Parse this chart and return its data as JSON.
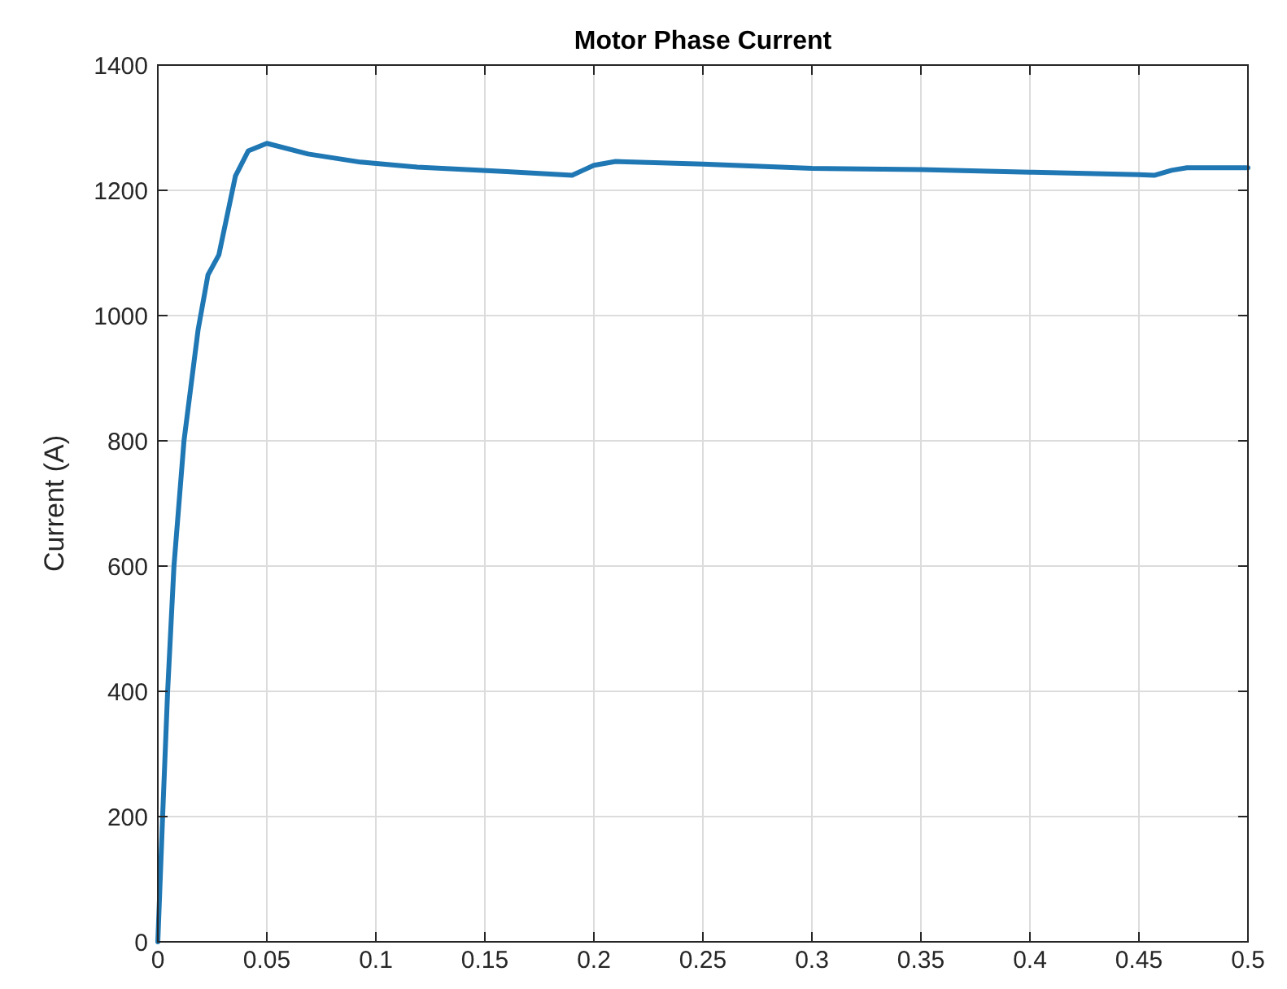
{
  "chart_data": {
    "type": "line",
    "title": "Motor Phase Current",
    "ylabel": "Current (A)",
    "x": [
      0,
      0.0022,
      0.0045,
      0.0074,
      0.012,
      0.0185,
      0.023,
      0.028,
      0.032,
      0.0356,
      0.0415,
      0.05,
      0.069,
      0.093,
      0.119,
      0.136,
      0.16,
      0.19,
      0.195,
      0.2,
      0.21,
      0.25,
      0.3,
      0.35,
      0.4,
      0.45,
      0.457,
      0.465,
      0.472,
      0.5
    ],
    "series": [
      {
        "color": "#1f77b4",
        "values": [
          0,
          200,
          400,
          600,
          800,
          978,
          1065,
          1097,
          1163,
          1223,
          1263,
          1275,
          1258,
          1245,
          1237,
          1234,
          1230,
          1224,
          1232,
          1240,
          1246,
          1242,
          1235,
          1233,
          1229,
          1225,
          1224,
          1232,
          1236,
          1236
        ]
      }
    ],
    "xlim": [
      0,
      0.5
    ],
    "ylim": [
      0,
      1400
    ],
    "xticks": [
      0,
      0.05,
      0.1,
      0.15,
      0.2,
      0.25,
      0.3,
      0.35,
      0.4,
      0.45,
      0.5
    ],
    "yticks": [
      0,
      200,
      400,
      600,
      800,
      1000,
      1200,
      1400
    ],
    "grid": true,
    "marker": "none",
    "line_style": "solid"
  }
}
